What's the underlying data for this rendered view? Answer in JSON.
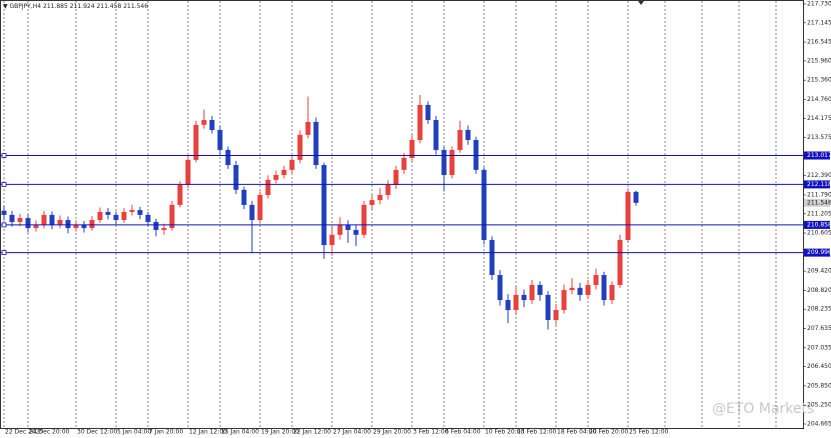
{
  "chart_data": {
    "type": "candlestick",
    "symbol": "GBPJPY,H4",
    "watermark": "@ETO Markets",
    "up_color": "#e8403a",
    "down_color": "#1f3fbf",
    "level_color": "#1010c0",
    "ylim": [
      204.665,
      217.73
    ],
    "yticks": [
      {
        "value": 217.73,
        "label": "217.730"
      },
      217.145,
      216.545,
      {
        "value": 215.96,
        "label": "215.960"
      },
      {
        "value": 215.36,
        "label": "215.360"
      },
      {
        "value": 214.76,
        "label": "214.760"
      },
      214.175,
      213.575,
      {
        "value": 212.39,
        "label": "212.390"
      },
      {
        "value": 211.79,
        "label": "211.790"
      },
      211.205,
      210.605,
      {
        "value": 209.42,
        "label": "209.420"
      },
      {
        "value": 208.82,
        "label": "208.820"
      },
      208.235,
      207.635,
      207.035,
      {
        "value": 206.45,
        "label": "206.450"
      },
      {
        "value": 205.85,
        "label": "205.850"
      },
      {
        "value": 205.25,
        "label": "205.250"
      },
      204.665
    ],
    "levels": [
      213.017,
      212.118,
      210.858,
      209.996
    ],
    "categories": [
      "22 Dec 2025",
      null,
      null,
      "24 Dec 20:00",
      null,
      null,
      null,
      null,
      null,
      "30 Dec 12:00",
      null,
      null,
      null,
      null,
      "5 Jan 04:00",
      null,
      null,
      null,
      "7 Jan 20:00",
      null,
      null,
      null,
      null,
      "12 Jan 12:00",
      null,
      null,
      null,
      "15 Jan 04:00",
      null,
      null,
      null,
      null,
      "19 Jan 20:00",
      null,
      null,
      null,
      "22 Jan 12:00",
      null,
      null,
      null,
      null,
      "27 Jan 04:00",
      null,
      null,
      null,
      null,
      "29 Jan 20:00",
      null,
      null,
      null,
      null,
      "3 Feb 12:00",
      null,
      null,
      null,
      "6 Feb 04:00",
      null,
      null,
      null,
      null,
      "10 Feb 20:00",
      null,
      null,
      null,
      "13 Feb 12:00",
      null,
      null,
      null,
      null,
      "18 Feb 04:00",
      null,
      null,
      null,
      "20 Feb 20:00",
      null,
      null,
      null,
      null,
      "25 Feb 12:00",
      null
    ],
    "open": [
      211.3,
      211.17,
      210.95,
      211.07,
      210.76,
      210.86,
      211.17,
      210.86,
      211.01,
      210.76,
      210.86,
      210.76,
      211.01,
      211.26,
      211.17,
      211.01,
      211.26,
      211.32,
      211.17,
      210.95,
      210.7,
      210.76,
      211.48,
      212.1,
      212.88,
      213.97,
      214.12,
      213.81,
      213.19,
      212.72,
      211.95,
      211.48,
      211.01,
      211.79,
      212.26,
      212.41,
      212.57,
      212.88,
      213.66,
      214.06,
      212.72,
      210.23,
      210.55,
      210.86,
      210.7,
      210.55,
      211.48,
      211.63,
      211.79,
      212.1,
      212.57,
      212.94,
      213.5,
      214.59,
      214.12,
      213.19,
      212.41,
      213.19,
      213.81,
      213.5,
      212.57,
      210.39,
      209.3,
      208.52,
      208.21,
      208.68,
      208.52,
      208.99,
      208.68,
      207.9,
      208.21,
      208.83,
      208.9,
      208.68,
      208.99,
      209.3,
      208.52,
      208.99,
      210.39,
      211.885
    ],
    "high": [
      211.45,
      211.3,
      211.2,
      211.18,
      211.0,
      211.3,
      211.28,
      211.15,
      211.12,
      211.0,
      210.98,
      211.14,
      211.4,
      211.38,
      211.28,
      211.38,
      211.48,
      211.42,
      211.26,
      211.05,
      210.9,
      211.6,
      212.22,
      213.0,
      214.1,
      214.45,
      214.25,
      213.92,
      213.3,
      212.85,
      212.05,
      211.6,
      211.9,
      212.4,
      212.55,
      212.7,
      213.0,
      213.8,
      214.85,
      214.2,
      212.8,
      210.8,
      211.1,
      211.0,
      210.85,
      211.6,
      211.8,
      212.0,
      212.25,
      212.7,
      213.1,
      213.65,
      214.9,
      214.7,
      214.25,
      213.3,
      213.3,
      214.1,
      213.95,
      213.6,
      212.65,
      210.5,
      209.45,
      208.7,
      208.95,
      208.85,
      209.15,
      209.1,
      208.8,
      208.4,
      209.0,
      209.2,
      209.05,
      209.15,
      209.5,
      209.4,
      209.1,
      210.55,
      212.0,
      211.924
    ],
    "low": [
      211.0,
      210.8,
      210.82,
      210.62,
      210.65,
      210.75,
      210.72,
      210.75,
      210.6,
      210.65,
      210.62,
      210.68,
      210.92,
      211.03,
      210.88,
      210.92,
      211.15,
      211.04,
      210.82,
      210.5,
      210.55,
      210.68,
      211.4,
      212.0,
      212.8,
      213.85,
      213.7,
      213.05,
      212.6,
      211.82,
      211.35,
      210.0,
      210.9,
      211.68,
      212.15,
      212.3,
      212.45,
      212.78,
      213.55,
      212.6,
      209.8,
      209.9,
      210.4,
      210.3,
      210.2,
      210.45,
      211.35,
      211.5,
      211.65,
      211.98,
      212.45,
      212.85,
      213.4,
      214.0,
      213.05,
      211.9,
      212.3,
      213.1,
      213.35,
      212.45,
      210.25,
      209.15,
      208.35,
      207.8,
      208.05,
      208.3,
      208.4,
      208.5,
      207.6,
      207.75,
      208.1,
      208.7,
      208.5,
      208.55,
      208.85,
      208.35,
      208.4,
      208.9,
      210.3,
      211.458
    ],
    "close": [
      211.17,
      210.95,
      211.07,
      210.76,
      210.86,
      211.17,
      210.86,
      211.01,
      210.76,
      210.86,
      210.76,
      211.01,
      211.26,
      211.17,
      211.01,
      211.26,
      211.32,
      211.17,
      210.95,
      210.7,
      210.76,
      211.48,
      212.1,
      212.88,
      213.97,
      214.12,
      213.81,
      213.19,
      212.72,
      211.95,
      211.48,
      211.01,
      211.79,
      212.26,
      212.41,
      212.57,
      212.88,
      213.66,
      214.06,
      212.72,
      210.23,
      210.55,
      210.86,
      210.7,
      210.55,
      211.48,
      211.63,
      211.79,
      212.1,
      212.57,
      212.94,
      213.5,
      214.59,
      214.12,
      213.19,
      212.41,
      213.19,
      213.81,
      213.5,
      212.57,
      210.39,
      209.3,
      208.52,
      208.21,
      208.68,
      208.52,
      208.99,
      208.68,
      207.9,
      208.21,
      208.83,
      208.9,
      208.68,
      208.99,
      209.3,
      208.52,
      208.99,
      210.39,
      211.885,
      211.546
    ]
  }
}
